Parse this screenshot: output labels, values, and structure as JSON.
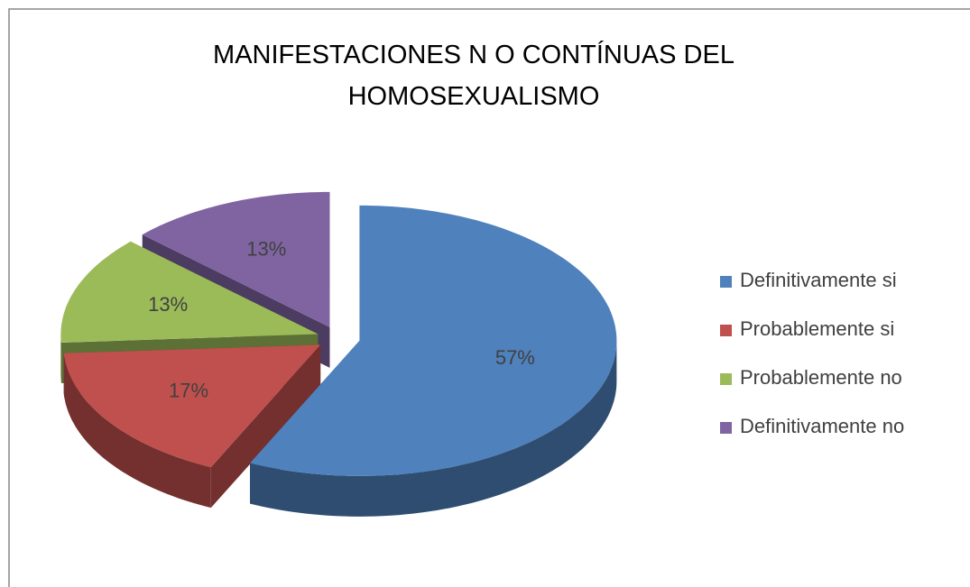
{
  "chart_data": {
    "type": "pie",
    "title": "MANIFESTACIONES  N O CONTÍNUAS DEL HOMOSEXUALISMO",
    "categories": [
      "Definitivamente si",
      "Probablemente si",
      "Probablemente no",
      "Definitivamente no"
    ],
    "values": [
      57,
      17,
      13,
      13
    ],
    "value_labels": [
      "57%",
      "17%",
      "13%",
      "13%"
    ],
    "colors": [
      "#4f81bd",
      "#c0504d",
      "#9bbb59",
      "#8064a2"
    ],
    "legend": "right"
  }
}
